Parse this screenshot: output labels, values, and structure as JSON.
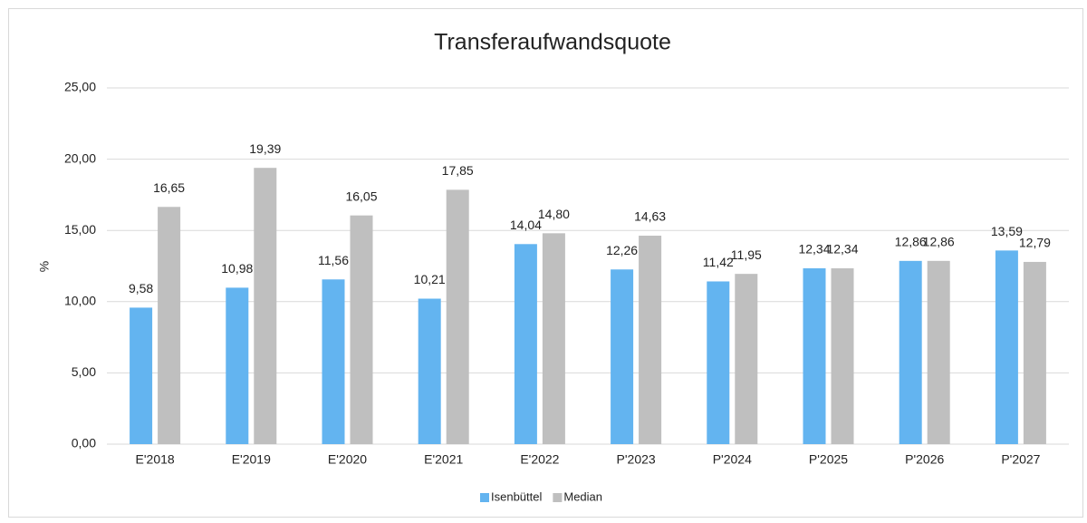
{
  "chart_data": {
    "type": "bar",
    "title": "Transferaufwandsquote",
    "y_label": "%",
    "categories": [
      "E'2018",
      "E'2019",
      "E'2020",
      "E'2021",
      "E'2022",
      "P'2023",
      "P'2024",
      "P'2025",
      "P'2026",
      "P'2027"
    ],
    "series": [
      {
        "name": "Isenbüttel",
        "color": "#63b4f0",
        "values": [
          9.58,
          10.98,
          11.56,
          10.21,
          14.04,
          12.26,
          11.42,
          12.34,
          12.86,
          13.59
        ],
        "value_labels": [
          "9,58",
          "10,98",
          "11,56",
          "10,21",
          "14,04",
          "12,26",
          "11,42",
          "12,34",
          "12,86",
          "13,59"
        ]
      },
      {
        "name": "Median",
        "color": "#bfbfbf",
        "values": [
          16.65,
          19.39,
          16.05,
          17.85,
          14.8,
          14.63,
          11.95,
          12.34,
          12.86,
          12.79
        ],
        "value_labels": [
          "16,65",
          "19,39",
          "16,05",
          "17,85",
          "14,80",
          "14,63",
          "11,95",
          "12,34",
          "12,86",
          "12,79"
        ]
      }
    ],
    "ylim": [
      0,
      25
    ],
    "yticks": [
      {
        "value": 0,
        "label": "0,00"
      },
      {
        "value": 5,
        "label": "5,00"
      },
      {
        "value": 10,
        "label": "10,00"
      },
      {
        "value": 15,
        "label": "15,00"
      },
      {
        "value": 20,
        "label": "20,00"
      },
      {
        "value": 25,
        "label": "25,00"
      }
    ],
    "grid": true,
    "legend": "bottom"
  }
}
